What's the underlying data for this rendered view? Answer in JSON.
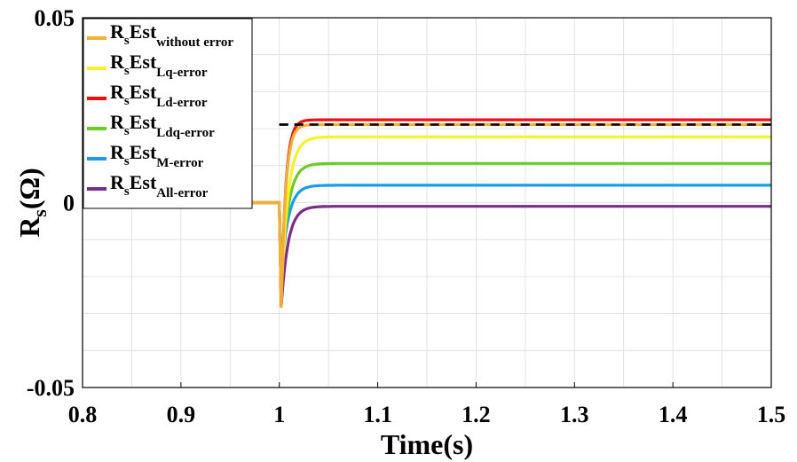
{
  "chart_data": {
    "type": "line",
    "xlabel": "Time(s)",
    "ylabel": "R_s(Ω)",
    "xlim": [
      0.8,
      1.5
    ],
    "ylim": [
      -0.05,
      0.05
    ],
    "xticks": [
      "0.8",
      "0.9",
      "1",
      "1.1",
      "1.2",
      "1.3",
      "1.4",
      "1.5"
    ],
    "yticks": [
      "-0.05",
      "0",
      "0.05"
    ],
    "grid": "on",
    "legend_position": "top-left",
    "reference": {
      "style": "dashed",
      "color": "#000000",
      "x_start": 1.0,
      "x_end": 1.5,
      "value": 0.0211
    },
    "series": [
      {
        "name_main": "R",
        "name_sub1": "s",
        "name_main2": "Est",
        "name_sub2": "without error",
        "color": "#F2B134",
        "initial": 0,
        "dip": -0.028,
        "final": 0.0211,
        "settle_time": 1.02
      },
      {
        "name_main": "R",
        "name_sub1": "s",
        "name_main2": "Est",
        "name_sub2": "Lq-error",
        "color": "#F6F12F",
        "initial": 0,
        "dip": -0.025,
        "final": 0.0178,
        "settle_time": 1.03
      },
      {
        "name_main": "R",
        "name_sub1": "s",
        "name_main2": "Est",
        "name_sub2": "Ld-error",
        "color": "#E8120F",
        "initial": 0,
        "dip": -0.028,
        "final": 0.0224,
        "settle_time": 1.02
      },
      {
        "name_main": "R",
        "name_sub1": "s",
        "name_main2": "Est",
        "name_sub2": "Ldq-error",
        "color": "#6CCB2C",
        "initial": 0,
        "dip": -0.022,
        "final": 0.0106,
        "settle_time": 1.03
      },
      {
        "name_main": "R",
        "name_sub1": "s",
        "name_main2": "Est",
        "name_sub2": "M-error",
        "color": "#1E9BE6",
        "initial": 0,
        "dip": -0.02,
        "final": 0.0047,
        "settle_time": 1.03
      },
      {
        "name_main": "R",
        "name_sub1": "s",
        "name_main2": "Est",
        "name_sub2": "All-error",
        "color": "#7B2C8E",
        "initial": 0,
        "dip": -0.028,
        "final": -0.001,
        "settle_time": 1.03
      }
    ]
  }
}
